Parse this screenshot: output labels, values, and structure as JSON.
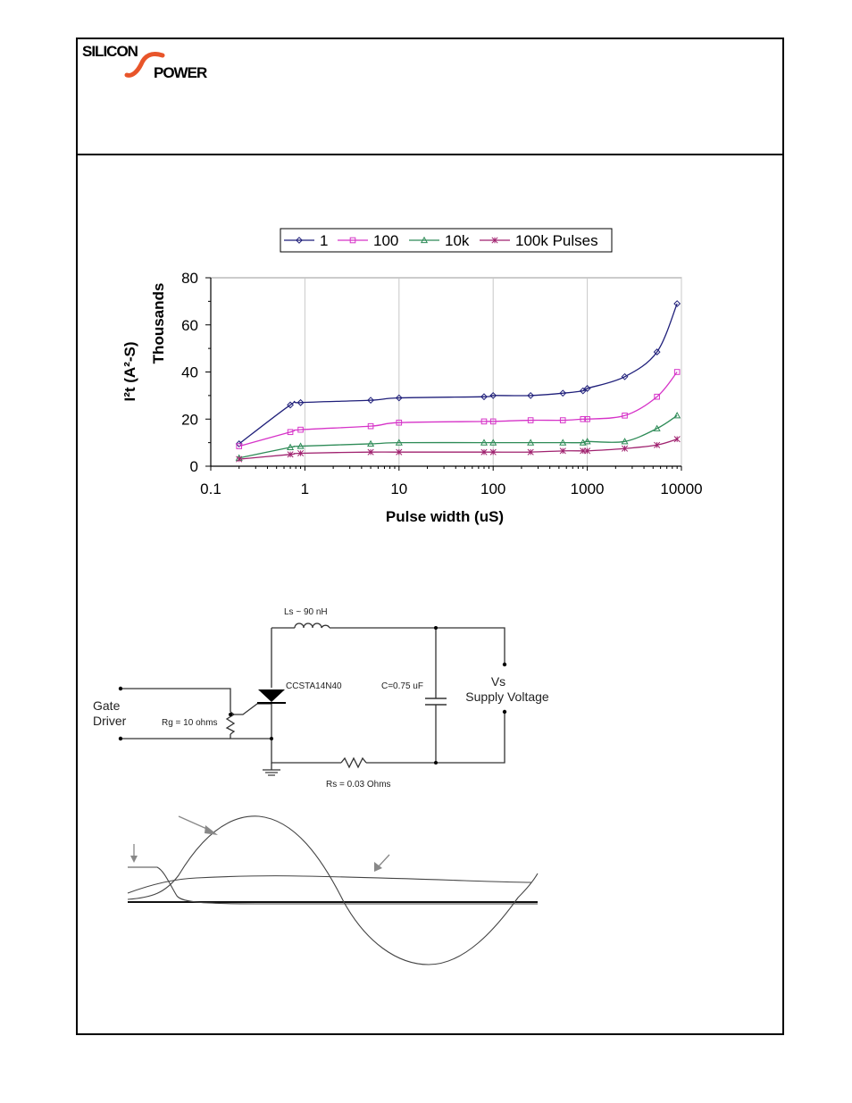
{
  "logo": {
    "top": "SILICON",
    "bottom": "POWER",
    "colors": {
      "swoosh": "#e8552a",
      "text": "#000000"
    }
  },
  "chart_data": {
    "type": "line",
    "xscale": "log",
    "xlim": [
      0.1,
      10000
    ],
    "ylim": [
      0,
      80
    ],
    "x_ticks": [
      "0.1",
      "1",
      "10",
      "100",
      "1000",
      "10000"
    ],
    "y_ticks": [
      "0",
      "20",
      "40",
      "60",
      "80"
    ],
    "xlabel": "Pulse width (uS)",
    "ylabel": "I²t (A²-S)",
    "ylabel2": "Thousands",
    "legend_position": "top",
    "grid": true,
    "x": [
      0.2,
      0.7,
      0.9,
      5,
      10,
      80,
      100,
      250,
      550,
      900,
      1000,
      2500,
      5500,
      9000
    ],
    "series": [
      {
        "name": "1",
        "marker": "diamond",
        "color": "#1f1f7a",
        "values": [
          9.5,
          26,
          27,
          28,
          29,
          29.5,
          30,
          30,
          31,
          32,
          33,
          38,
          48.5,
          69
        ]
      },
      {
        "name": "100",
        "marker": "square",
        "color": "#d633c8",
        "values": [
          8.5,
          14.5,
          15.5,
          17,
          18.5,
          19,
          19,
          19.5,
          19.5,
          20,
          20,
          21.5,
          29.5,
          40
        ]
      },
      {
        "name": "10k",
        "marker": "triangle",
        "color": "#2e8b57",
        "values": [
          3.5,
          8,
          8.5,
          9.5,
          10,
          10,
          10,
          10,
          10,
          10,
          10.5,
          10.5,
          16,
          21.5
        ]
      },
      {
        "name": "100k Pulses",
        "marker": "star",
        "color": "#a0226f",
        "values": [
          3,
          5,
          5.5,
          6,
          6,
          6,
          6,
          6,
          6.5,
          6.5,
          6.5,
          7.5,
          9,
          11.5
        ]
      }
    ]
  },
  "circuit": {
    "inductor": "Ls ~ 90 nH",
    "device": "CCSTA14N40",
    "capacitor": "C=0.75 uF",
    "supply_top": "Vs",
    "supply_bottom": "Supply Voltage",
    "gate_top": "Gate",
    "gate_bottom": "Driver",
    "gate_resistor": "Rg = 10 ohms",
    "sense_resistor": "Rs = 0.03 Ohms"
  }
}
